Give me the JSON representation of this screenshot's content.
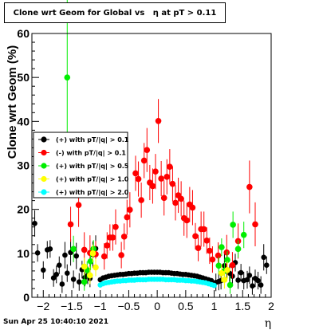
{
  "chart_data": {
    "type": "scatter",
    "title": "Clone wrt Geom for Global vs   η at pT > 0.11",
    "ylabel": "Clone wrt Geom (%)",
    "xlabel": "η",
    "xlim": [
      -2.2,
      2.0
    ],
    "ylim": [
      0,
      60
    ],
    "x_ticks": [
      -2,
      -1.5,
      -1,
      -0.5,
      0,
      0.5,
      1,
      1.5,
      2
    ],
    "x_tick_labels": [
      "−2",
      "−1.5",
      "−1",
      "−0.5",
      "0",
      "0.5",
      "1",
      "1.5",
      "2"
    ],
    "y_ticks": [
      0,
      10,
      20,
      30,
      40,
      50,
      60
    ],
    "y_tick_labels": [
      "0",
      "10",
      "20",
      "30",
      "40",
      "50",
      "60"
    ],
    "legend": {
      "placement": "middle-left",
      "entries": [
        {
          "label": "(+) with pT/|q| > 0.1",
          "color": "#000000"
        },
        {
          "label": "(-) with pT/|q| > 0.1",
          "color": "#ff0000"
        },
        {
          "label": "(+) with pT/|q| > 0.5",
          "color": "#00ee00"
        },
        {
          "label": "(+) with pT/|q| > 1.0",
          "color": "#ffff00"
        },
        {
          "label": "(+) with pT/|q| > 2.0",
          "color": "#00ffff"
        }
      ]
    },
    "series": [
      {
        "color": "#000000",
        "points": [
          [
            -2.15,
            16.8,
            3
          ],
          [
            -2.1,
            10.1,
            2
          ],
          [
            -2.0,
            6.2,
            2
          ],
          [
            -1.93,
            10.8,
            2
          ],
          [
            -1.88,
            11.0,
            2
          ],
          [
            -1.82,
            4.4,
            2
          ],
          [
            -1.77,
            5.2,
            2
          ],
          [
            -1.72,
            7.3,
            2
          ],
          [
            -1.67,
            3.0,
            2
          ],
          [
            -1.62,
            9.6,
            3
          ],
          [
            -1.58,
            5.5,
            2
          ],
          [
            -1.52,
            10.2,
            3
          ],
          [
            -1.47,
            4.1,
            2
          ],
          [
            -1.42,
            9.4,
            3
          ],
          [
            -1.37,
            3.5,
            2
          ],
          [
            -1.32,
            6.3,
            2
          ],
          [
            -1.27,
            4.5,
            2
          ],
          [
            -1.22,
            5.0,
            2
          ],
          [
            -1.18,
            4.3,
            2
          ],
          [
            -1.13,
            9.7,
            3
          ],
          [
            -1.08,
            11.1,
            3
          ],
          [
            -1.0,
            4.0,
            0.5
          ],
          [
            -0.95,
            4.4,
            0.5
          ],
          [
            -0.9,
            4.6,
            0.5
          ],
          [
            -0.85,
            4.8,
            0.5
          ],
          [
            -0.8,
            4.9,
            0.5
          ],
          [
            -0.75,
            5.0,
            0.5
          ],
          [
            -0.7,
            5.1,
            0.5
          ],
          [
            -0.65,
            5.2,
            0.5
          ],
          [
            -0.6,
            5.2,
            0.5
          ],
          [
            -0.55,
            5.3,
            0.5
          ],
          [
            -0.5,
            5.4,
            0.5
          ],
          [
            -0.45,
            5.4,
            0.5
          ],
          [
            -0.4,
            5.5,
            0.5
          ],
          [
            -0.35,
            5.5,
            0.5
          ],
          [
            -0.3,
            5.6,
            0.5
          ],
          [
            -0.25,
            5.6,
            0.5
          ],
          [
            -0.2,
            5.6,
            0.5
          ],
          [
            -0.15,
            5.7,
            0.5
          ],
          [
            -0.1,
            5.7,
            0.5
          ],
          [
            -0.05,
            5.7,
            0.5
          ],
          [
            0.0,
            5.7,
            0.5
          ],
          [
            0.05,
            5.7,
            0.5
          ],
          [
            0.1,
            5.6,
            0.5
          ],
          [
            0.15,
            5.6,
            0.5
          ],
          [
            0.2,
            5.6,
            0.5
          ],
          [
            0.25,
            5.5,
            0.5
          ],
          [
            0.3,
            5.4,
            0.5
          ],
          [
            0.35,
            5.4,
            0.5
          ],
          [
            0.4,
            5.3,
            0.5
          ],
          [
            0.45,
            5.2,
            0.5
          ],
          [
            0.5,
            5.2,
            0.5
          ],
          [
            0.55,
            5.1,
            0.5
          ],
          [
            0.6,
            5.0,
            0.5
          ],
          [
            0.65,
            4.9,
            0.5
          ],
          [
            0.7,
            4.8,
            0.5
          ],
          [
            0.75,
            4.6,
            0.5
          ],
          [
            0.8,
            4.4,
            0.5
          ],
          [
            0.85,
            4.2,
            0.5
          ],
          [
            0.9,
            4.0,
            0.5
          ],
          [
            0.95,
            3.8,
            0.5
          ],
          [
            1.03,
            3.4,
            2
          ],
          [
            1.08,
            3.6,
            2
          ],
          [
            1.12,
            3.8,
            2
          ],
          [
            1.18,
            7.2,
            3
          ],
          [
            1.22,
            6.0,
            2
          ],
          [
            1.27,
            5.5,
            2
          ],
          [
            1.32,
            4.8,
            2
          ],
          [
            1.37,
            7.9,
            2
          ],
          [
            1.42,
            3.9,
            2
          ],
          [
            1.47,
            5.6,
            2
          ],
          [
            1.52,
            3.8,
            2
          ],
          [
            1.58,
            4.0,
            2
          ],
          [
            1.62,
            5.0,
            2
          ],
          [
            1.67,
            2.6,
            2
          ],
          [
            1.72,
            4.3,
            2
          ],
          [
            1.77,
            3.8,
            2
          ],
          [
            1.82,
            2.8,
            2
          ],
          [
            1.87,
            9.1,
            3
          ],
          [
            1.92,
            7.3,
            2
          ]
        ]
      },
      {
        "color": "#ff0000",
        "points": [
          [
            -1.52,
            16.6,
            4
          ],
          [
            -1.38,
            21.0,
            5
          ],
          [
            -1.28,
            10.8,
            4
          ],
          [
            -1.18,
            10.1,
            4
          ],
          [
            -1.08,
            9.8,
            3
          ],
          [
            -0.93,
            9.3,
            3
          ],
          [
            -0.88,
            11.8,
            3
          ],
          [
            -0.83,
            13.6,
            3
          ],
          [
            -0.78,
            13.6,
            3
          ],
          [
            -0.73,
            16.0,
            4
          ],
          [
            -0.63,
            9.6,
            3
          ],
          [
            -0.58,
            13.8,
            3
          ],
          [
            -0.53,
            18.2,
            4
          ],
          [
            -0.48,
            19.9,
            4
          ],
          [
            -0.38,
            28.2,
            4
          ],
          [
            -0.33,
            26.9,
            4
          ],
          [
            -0.28,
            22.1,
            4
          ],
          [
            -0.23,
            31.1,
            4
          ],
          [
            -0.18,
            33.5,
            5
          ],
          [
            -0.13,
            26.1,
            4
          ],
          [
            -0.08,
            25.3,
            4
          ],
          [
            -0.03,
            28.6,
            4
          ],
          [
            0.02,
            40.1,
            5
          ],
          [
            0.07,
            27.0,
            4
          ],
          [
            0.12,
            22.6,
            4
          ],
          [
            0.17,
            27.4,
            4
          ],
          [
            0.22,
            29.7,
            4
          ],
          [
            0.27,
            25.8,
            4
          ],
          [
            0.32,
            21.5,
            4
          ],
          [
            0.37,
            23.2,
            4
          ],
          [
            0.42,
            22.4,
            4
          ],
          [
            0.47,
            18.0,
            4
          ],
          [
            0.52,
            17.5,
            4
          ],
          [
            0.57,
            21.1,
            4
          ],
          [
            0.62,
            20.4,
            4
          ],
          [
            0.67,
            13.9,
            3
          ],
          [
            0.72,
            11.2,
            3
          ],
          [
            0.77,
            15.5,
            4
          ],
          [
            0.82,
            15.5,
            4
          ],
          [
            0.87,
            12.9,
            3
          ],
          [
            0.92,
            10.6,
            3
          ],
          [
            0.97,
            8.6,
            3
          ],
          [
            1.07,
            9.5,
            3
          ],
          [
            1.22,
            10.2,
            4
          ],
          [
            1.32,
            7.3,
            3
          ],
          [
            1.42,
            12.8,
            4
          ],
          [
            1.62,
            25.1,
            6
          ],
          [
            1.72,
            16.6,
            5
          ]
        ]
      },
      {
        "color": "#00ee00",
        "points": [
          [
            -1.58,
            50.0,
            20
          ],
          [
            -1.47,
            11.0,
            3
          ],
          [
            -1.28,
            3.5,
            2
          ],
          [
            -1.23,
            6.2,
            2
          ],
          [
            -1.17,
            8.2,
            2
          ],
          [
            -1.12,
            11.0,
            2
          ],
          [
            1.08,
            7.2,
            2
          ],
          [
            1.13,
            11.4,
            2
          ],
          [
            1.18,
            6.0,
            2
          ],
          [
            1.23,
            8.5,
            2
          ],
          [
            1.28,
            2.8,
            2
          ],
          [
            1.33,
            16.5,
            3
          ],
          [
            1.42,
            11.0,
            2
          ],
          [
            1.52,
            14.2,
            3
          ]
        ]
      },
      {
        "color": "#ffff00",
        "points": [
          [
            -1.28,
            7.0,
            2
          ],
          [
            -1.18,
            5.0,
            2
          ],
          [
            -1.13,
            10.0,
            2
          ],
          [
            -1.08,
            6.8,
            2
          ],
          [
            1.13,
            5.5,
            2
          ],
          [
            1.18,
            4.0,
            2
          ],
          [
            1.23,
            6.2,
            2
          ]
        ]
      },
      {
        "color": "#00ffff",
        "points": [
          [
            -1.0,
            2.8,
            0.3
          ],
          [
            -0.95,
            3.1,
            0.3
          ],
          [
            -0.9,
            3.3,
            0.3
          ],
          [
            -0.85,
            3.4,
            0.3
          ],
          [
            -0.8,
            3.5,
            0.3
          ],
          [
            -0.75,
            3.6,
            0.3
          ],
          [
            -0.7,
            3.7,
            0.3
          ],
          [
            -0.65,
            3.7,
            0.3
          ],
          [
            -0.6,
            3.8,
            0.3
          ],
          [
            -0.55,
            3.8,
            0.3
          ],
          [
            -0.5,
            3.9,
            0.3
          ],
          [
            -0.45,
            3.9,
            0.3
          ],
          [
            -0.4,
            3.9,
            0.3
          ],
          [
            -0.35,
            4.0,
            0.3
          ],
          [
            -0.3,
            4.0,
            0.3
          ],
          [
            -0.25,
            4.0,
            0.3
          ],
          [
            -0.2,
            4.0,
            0.3
          ],
          [
            -0.15,
            4.1,
            0.3
          ],
          [
            -0.1,
            4.1,
            0.3
          ],
          [
            -0.05,
            4.1,
            0.3
          ],
          [
            0.0,
            4.1,
            0.3
          ],
          [
            0.05,
            4.1,
            0.3
          ],
          [
            0.1,
            4.1,
            0.3
          ],
          [
            0.15,
            4.0,
            0.3
          ],
          [
            0.2,
            4.0,
            0.3
          ],
          [
            0.25,
            4.0,
            0.3
          ],
          [
            0.3,
            4.0,
            0.3
          ],
          [
            0.35,
            3.9,
            0.3
          ],
          [
            0.4,
            3.9,
            0.3
          ],
          [
            0.45,
            3.9,
            0.3
          ],
          [
            0.5,
            3.8,
            0.3
          ],
          [
            0.55,
            3.8,
            0.3
          ],
          [
            0.6,
            3.7,
            0.3
          ],
          [
            0.65,
            3.7,
            0.3
          ],
          [
            0.7,
            3.6,
            0.3
          ],
          [
            0.75,
            3.5,
            0.3
          ],
          [
            0.8,
            3.4,
            0.3
          ],
          [
            0.85,
            3.3,
            0.3
          ],
          [
            0.9,
            3.1,
            0.3
          ],
          [
            0.95,
            2.9,
            0.3
          ],
          [
            1.0,
            2.7,
            0.3
          ]
        ]
      }
    ]
  },
  "footer": {
    "timestamp": "Sun Apr 25 10:40:10 2021"
  }
}
